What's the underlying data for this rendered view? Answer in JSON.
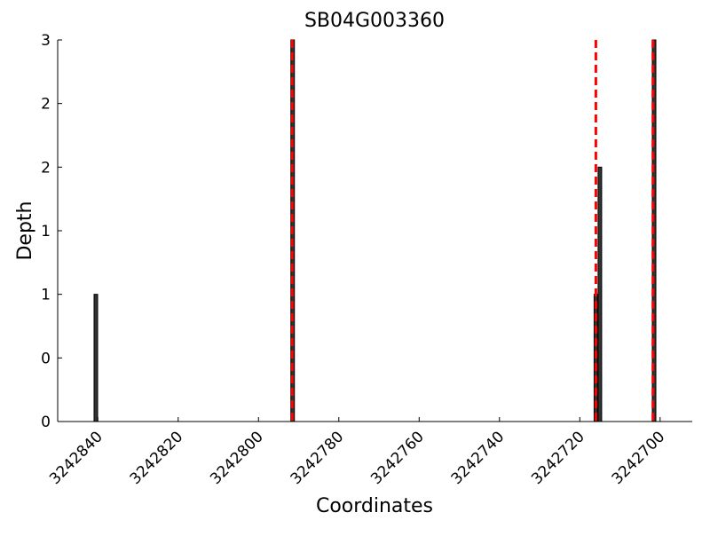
{
  "chart_data": {
    "type": "bar",
    "title": "SB04G003360",
    "xlabel": "Coordinates",
    "ylabel": "Depth",
    "x": [
      3242840.5,
      3242791.5,
      3242716,
      3242715,
      3242701.5
    ],
    "values": [
      1,
      3,
      1,
      2,
      3
    ],
    "color": "#333333",
    "xlim": [
      3242850,
      3242692
    ],
    "xticks": [
      3242840,
      3242820,
      3242800,
      3242780,
      3242760,
      3242740,
      3242720,
      3242700
    ],
    "ylim": [
      0,
      3
    ],
    "yticks": [
      {
        "value": 0,
        "label": "0"
      },
      {
        "value": 0.5,
        "label": "0"
      },
      {
        "value": 1,
        "label": "1"
      },
      {
        "value": 1.5,
        "label": "1"
      },
      {
        "value": 2,
        "label": "2"
      },
      {
        "value": 2.5,
        "label": "2"
      },
      {
        "value": 3,
        "label": "3"
      }
    ],
    "vlines": [
      3242791.6,
      3242716,
      3242701.8
    ],
    "vline_color": "#ff0000",
    "grid": false
  }
}
